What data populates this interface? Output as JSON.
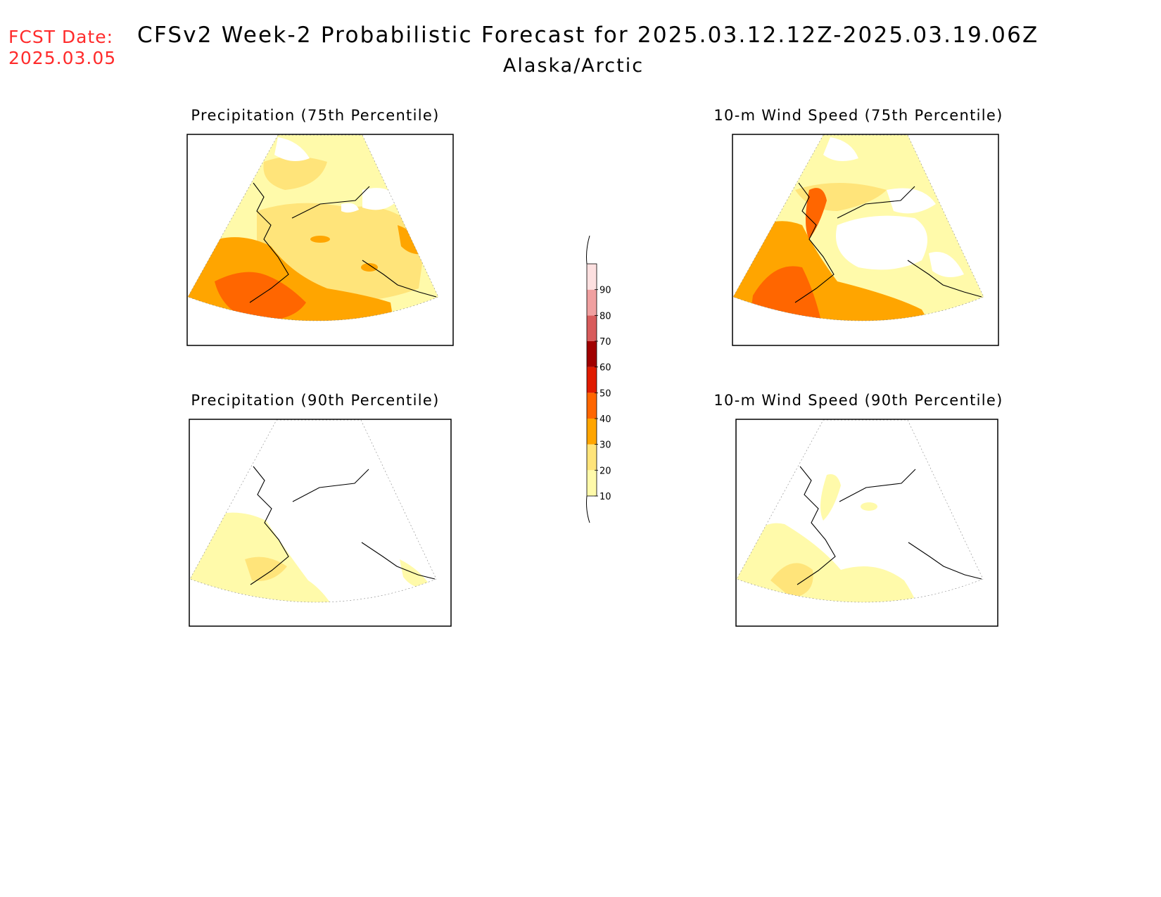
{
  "header": {
    "fcst_label": "FCST Date:",
    "fcst_date": "2025.03.05",
    "title": "CFSv2 Week-2 Probabilistic Forecast for 2025.03.12.12Z-2025.03.19.06Z",
    "subtitle": "Alaska/Arctic"
  },
  "panels": [
    {
      "title": "Precipitation (75th Percentile)",
      "max_category": 50
    },
    {
      "title": "10-m Wind Speed (75th Percentile)",
      "max_category": 50
    },
    {
      "title": "Precipitation (90th Percentile)",
      "max_category": 30
    },
    {
      "title": "10-m Wind Speed (90th Percentile)",
      "max_category": 30
    }
  ],
  "colorbar": {
    "labels": [
      "10",
      "20",
      "30",
      "40",
      "50",
      "60",
      "70",
      "80",
      "90"
    ],
    "colors": [
      "#fffaaa",
      "#ffe47a",
      "#ffa500",
      "#ff6600",
      "#e01b00",
      "#a00000",
      "#d85c5c",
      "#f0a0a0",
      "#fde0e0"
    ]
  }
}
